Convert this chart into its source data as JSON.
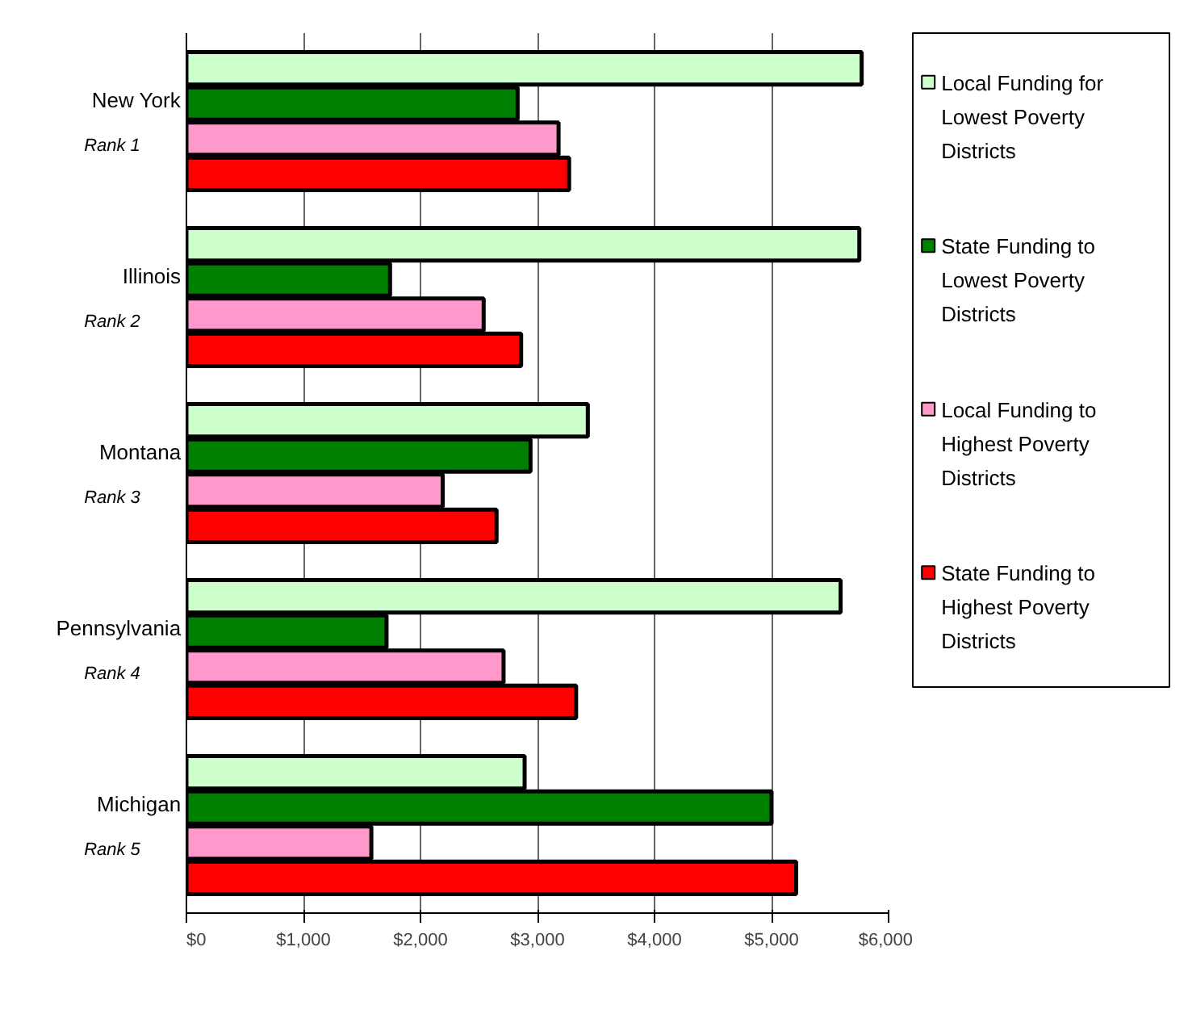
{
  "chart_data": {
    "type": "bar",
    "orientation": "horizontal",
    "categories": [
      "New York",
      "Illinois",
      "Montana",
      "Pennsylvania",
      "Michigan"
    ],
    "series": [
      {
        "name": "Local Funding for Lowest Poverty Districts",
        "color": "#ccffcc",
        "values": [
          5770,
          5750,
          3430,
          5590,
          2890
        ]
      },
      {
        "name": "State Funding to Lowest Poverty Districts",
        "color": "#008000",
        "values": [
          2830,
          1740,
          2940,
          1710,
          5000
        ]
      },
      {
        "name": "Local Funding to Highest Poverty Districts",
        "color": "#ff99cc",
        "values": [
          3180,
          2540,
          2190,
          2710,
          1580
        ]
      },
      {
        "name": "State Funding to Highest Poverty Districts",
        "color": "#ff0000",
        "values": [
          3270,
          2860,
          2650,
          3330,
          5210
        ]
      }
    ],
    "annotations": [
      "Rank 1",
      "Rank 2",
      "Rank 3",
      "Rank 4",
      "Rank 5"
    ],
    "xlim": [
      0,
      6000
    ],
    "xticks": [
      {
        "value": 0,
        "label": "$0"
      },
      {
        "value": 1000,
        "label": "$1,000"
      },
      {
        "value": 2000,
        "label": "$2,000"
      },
      {
        "value": 3000,
        "label": "$3,000"
      },
      {
        "value": 4000,
        "label": "$4,000"
      },
      {
        "value": 5000,
        "label": "$5,000"
      },
      {
        "value": 6000,
        "label": "$6,000"
      }
    ],
    "grid": "x",
    "legend": "right"
  }
}
